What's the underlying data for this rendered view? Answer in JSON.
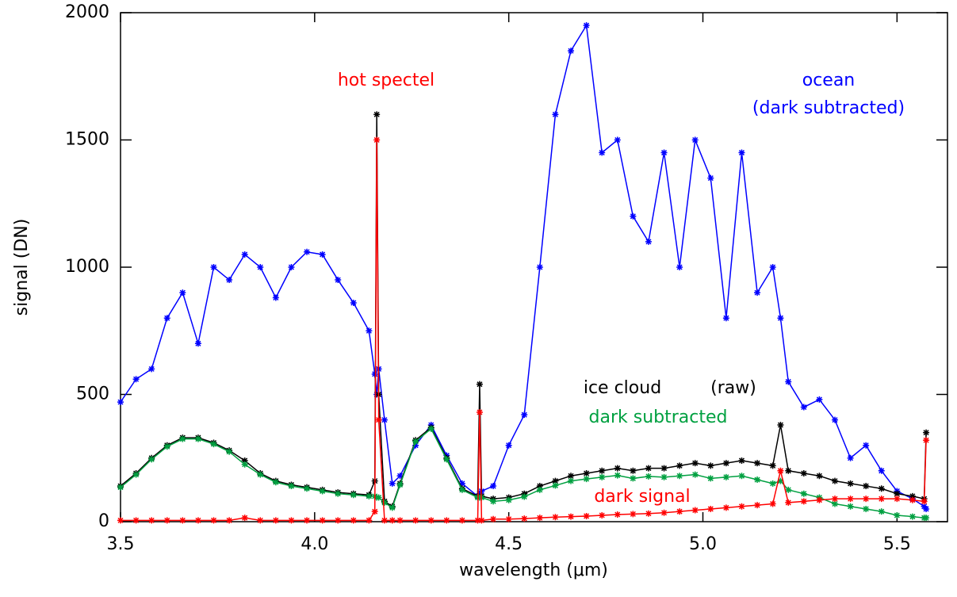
{
  "chart_data": {
    "type": "line",
    "xlabel": "wavelength (μm)",
    "ylabel": "signal (DN)",
    "xlim": [
      3.5,
      5.63
    ],
    "ylim": [
      0,
      2000
    ],
    "xticks": [
      3.5,
      {
        "value": 4,
        "label": "4.0"
      },
      4.5,
      {
        "value": 5,
        "label": "5.0"
      },
      5.5
    ],
    "yticks": [
      0,
      500,
      1000,
      1500,
      2000
    ],
    "x": [
      3.5,
      3.54,
      3.58,
      3.62,
      3.66,
      3.7,
      3.74,
      3.78,
      3.82,
      3.86,
      3.9,
      3.94,
      3.98,
      4.02,
      4.06,
      4.1,
      4.14,
      4.155,
      4.16,
      4.165,
      4.18,
      4.2,
      4.22,
      4.26,
      4.3,
      4.34,
      4.38,
      4.42,
      4.425,
      4.43,
      4.46,
      4.5,
      4.54,
      4.58,
      4.62,
      4.66,
      4.7,
      4.74,
      4.78,
      4.82,
      4.86,
      4.9,
      4.94,
      4.98,
      5.02,
      5.06,
      5.1,
      5.14,
      5.18,
      5.2,
      5.22,
      5.26,
      5.3,
      5.34,
      5.38,
      5.42,
      5.46,
      5.5,
      5.54,
      5.57,
      5.575
    ],
    "series": [
      {
        "name": "ocean",
        "color": "#0000ff",
        "values": [
          470,
          560,
          600,
          800,
          900,
          700,
          1000,
          950,
          1050,
          1000,
          880,
          1000,
          1060,
          1050,
          950,
          860,
          750,
          580,
          500,
          600,
          400,
          150,
          180,
          300,
          380,
          260,
          150,
          100,
          110,
          120,
          140,
          300,
          420,
          1000,
          1600,
          1850,
          1950,
          1450,
          1500,
          1200,
          1100,
          1450,
          1000,
          1500,
          1350,
          800,
          1450,
          900,
          1000,
          800,
          550,
          450,
          480,
          400,
          250,
          300,
          200,
          120,
          90,
          60,
          50
        ]
      },
      {
        "name": "ice cloud",
        "color": "#000000",
        "values": [
          140,
          190,
          250,
          300,
          330,
          330,
          310,
          280,
          240,
          190,
          160,
          145,
          135,
          125,
          115,
          110,
          105,
          160,
          1600,
          500,
          80,
          60,
          150,
          320,
          370,
          250,
          130,
          100,
          540,
          100,
          90,
          95,
          110,
          140,
          160,
          180,
          190,
          200,
          210,
          200,
          210,
          210,
          220,
          230,
          220,
          230,
          240,
          230,
          220,
          380,
          200,
          190,
          180,
          160,
          150,
          140,
          130,
          110,
          100,
          90,
          350
        ]
      },
      {
        "name": "dark subtracted",
        "color": "#00a040",
        "values": [
          135,
          185,
          245,
          295,
          325,
          325,
          305,
          275,
          225,
          185,
          155,
          140,
          130,
          120,
          110,
          105,
          100,
          100,
          95,
          95,
          75,
          55,
          145,
          315,
          365,
          245,
          125,
          95,
          95,
          95,
          80,
          85,
          98,
          125,
          142,
          160,
          168,
          175,
          182,
          170,
          178,
          175,
          180,
          185,
          170,
          175,
          180,
          165,
          150,
          160,
          125,
          110,
          95,
          70,
          60,
          50,
          40,
          25,
          20,
          15,
          15
        ]
      },
      {
        "name": "dark signal",
        "color": "#ff0000",
        "values": [
          5,
          5,
          5,
          5,
          5,
          5,
          5,
          5,
          15,
          5,
          5,
          5,
          5,
          5,
          5,
          5,
          5,
          40,
          1500,
          400,
          5,
          5,
          5,
          5,
          5,
          5,
          5,
          5,
          430,
          5,
          10,
          10,
          12,
          15,
          18,
          20,
          22,
          25,
          28,
          30,
          32,
          35,
          40,
          45,
          50,
          55,
          60,
          65,
          70,
          200,
          75,
          80,
          85,
          90,
          90,
          90,
          90,
          90,
          85,
          80,
          320
        ]
      }
    ],
    "annotations": [
      {
        "text": "hot spectel",
        "color": "#ff0000"
      },
      {
        "text": "(dark subtracted)",
        "color": "#0000ff"
      },
      {
        "text": "(raw)",
        "color": "#000000"
      }
    ]
  }
}
